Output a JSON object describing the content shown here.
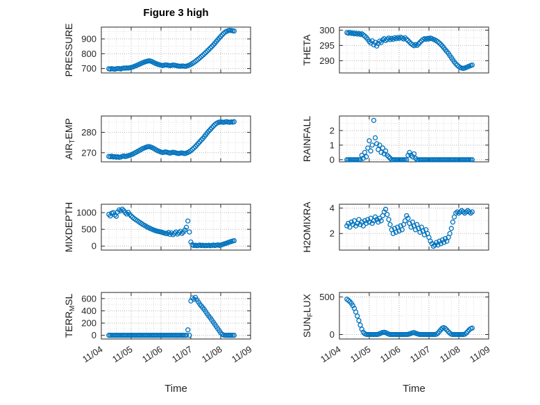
{
  "title": "Figure 3 high",
  "chart_data": {
    "type": "scatter",
    "title": "Figure 3 high",
    "xlabel": "Time",
    "xlim": [
      4,
      9
    ],
    "xticks": [
      4,
      5,
      6,
      7,
      8,
      9
    ],
    "xtick_labels": [
      "11/04",
      "11/05",
      "11/06",
      "11/07",
      "11/08",
      "11/09"
    ],
    "marker_color": "#0072BD",
    "grid": "on",
    "x": [
      4.25,
      4.3,
      4.35,
      4.4,
      4.45,
      4.5,
      4.55,
      4.6,
      4.65,
      4.7,
      4.75,
      4.8,
      4.85,
      4.9,
      4.95,
      5,
      5.05,
      5.1,
      5.15,
      5.2,
      5.25,
      5.3,
      5.35,
      5.4,
      5.45,
      5.5,
      5.55,
      5.6,
      5.65,
      5.7,
      5.75,
      5.8,
      5.85,
      5.9,
      5.95,
      6,
      6.05,
      6.1,
      6.15,
      6.2,
      6.25,
      6.3,
      6.35,
      6.4,
      6.45,
      6.5,
      6.55,
      6.6,
      6.65,
      6.7,
      6.75,
      6.8,
      6.85,
      6.9,
      6.95,
      7,
      7.05,
      7.1,
      7.15,
      7.2,
      7.25,
      7.3,
      7.35,
      7.4,
      7.45,
      7.5,
      7.55,
      7.6,
      7.65,
      7.7,
      7.75,
      7.8,
      7.85,
      7.9,
      7.95,
      8,
      8.05,
      8.1,
      8.15,
      8.2,
      8.25,
      8.3,
      8.35,
      8.4,
      8.45
    ],
    "panels": [
      {
        "name": "PRESSURE",
        "row": 0,
        "col": 0,
        "label_parts": [
          {
            "text": "PRESSURE"
          }
        ],
        "ylim": [
          670,
          980
        ],
        "yticks": [
          700,
          800,
          900
        ],
        "values": [
          698,
          696,
          699,
          697,
          695,
          698,
          700,
          699,
          697,
          701,
          703,
          702,
          704,
          703,
          705,
          707,
          710,
          714,
          718,
          722,
          727,
          731,
          736,
          740,
          744,
          747,
          750,
          752,
          750,
          746,
          741,
          736,
          732,
          728,
          725,
          722,
          720,
          722,
          724,
          723,
          721,
          719,
          721,
          723,
          722,
          720,
          718,
          716,
          715,
          717,
          716,
          714,
          716,
          719,
          723,
          728,
          734,
          741,
          748,
          756,
          764,
          772,
          781,
          790,
          799,
          808,
          818,
          828,
          838,
          848,
          859,
          870,
          882,
          894,
          906,
          917,
          928,
          938,
          946,
          952,
          956,
          958,
          957,
          955,
          953
        ]
      },
      {
        "name": "THETA",
        "row": 0,
        "col": 1,
        "label_parts": [
          {
            "text": "THETA"
          }
        ],
        "ylim": [
          286,
          301
        ],
        "yticks": [
          290,
          295,
          300
        ],
        "values": [
          299.2,
          299,
          299.3,
          298.9,
          299.1,
          298.8,
          299,
          298.7,
          298.9,
          298.6,
          298.8,
          298.4,
          298.1,
          297.6,
          297,
          296.3,
          295.8,
          296.5,
          295.2,
          296,
          294.8,
          295.6,
          296.4,
          296,
          296.8,
          297.2,
          296.6,
          297,
          297.4,
          296.9,
          297.3,
          297,
          297.5,
          297.2,
          297.6,
          297.3,
          297.7,
          297.4,
          297.1,
          297.5,
          297,
          296.6,
          296.1,
          295.6,
          295.2,
          294.9,
          295.3,
          295,
          295.5,
          296,
          296.5,
          296.9,
          297.2,
          297,
          297.3,
          297.1,
          297.4,
          297.2,
          297,
          296.8,
          296.5,
          296.2,
          295.8,
          295.3,
          294.8,
          294.2,
          293.6,
          293,
          292.4,
          291.7,
          291,
          290.3,
          289.6,
          289,
          288.5,
          288.1,
          287.8,
          287.6,
          287.5,
          287.6,
          287.8,
          288,
          288.2,
          288.4,
          288.6
        ]
      },
      {
        "name": "AIRTEMP",
        "row": 1,
        "col": 0,
        "label_parts": [
          {
            "text": "AIR"
          },
          {
            "text": "T",
            "sub": true
          },
          {
            "text": "EMP"
          }
        ],
        "ylim": [
          265.5,
          288
        ],
        "yticks": [
          270,
          280
        ],
        "values": [
          268.2,
          268,
          268.3,
          267.9,
          268.1,
          267.8,
          268,
          267.7,
          267.9,
          268.2,
          268.4,
          268.1,
          268.3,
          268.5,
          268.7,
          269,
          269.3,
          269.7,
          270.1,
          270.5,
          270.9,
          271.3,
          271.7,
          272.1,
          272.4,
          272.7,
          272.9,
          273,
          272.8,
          272.5,
          272.1,
          271.7,
          271.3,
          270.9,
          270.6,
          270.3,
          270.1,
          270.2,
          270.4,
          270.2,
          270,
          269.8,
          270,
          270.2,
          270.1,
          269.9,
          269.7,
          269.6,
          269.8,
          269.9,
          269.7,
          269.6,
          269.8,
          270.1,
          270.5,
          271,
          271.6,
          272.3,
          273,
          273.8,
          274.6,
          275.4,
          276.2,
          277,
          277.9,
          278.8,
          279.7,
          280.6,
          281.4,
          282.2,
          283,
          283.7,
          284.3,
          284.7,
          285,
          285.1,
          285,
          284.9,
          285.1,
          285.2,
          285,
          284.9,
          285.1,
          285,
          285.2
        ]
      },
      {
        "name": "RAINFALL",
        "row": 1,
        "col": 1,
        "label_parts": [
          {
            "text": "RAINFALL"
          }
        ],
        "ylim": [
          -0.15,
          3.0
        ],
        "yticks": [
          0,
          1,
          2
        ],
        "values": [
          0,
          0,
          0,
          0,
          0,
          0,
          0,
          0,
          0,
          0,
          0.3,
          0.1,
          0.5,
          0.2,
          0.8,
          1.3,
          0.6,
          1,
          2.7,
          1.5,
          1.1,
          0.7,
          1,
          0.5,
          0.8,
          0.4,
          0.6,
          0.3,
          0.2,
          0.1,
          0,
          0,
          0,
          0,
          0,
          0,
          0,
          0,
          0,
          0,
          0,
          0.3,
          0.5,
          0.3,
          0.2,
          0.4,
          0.1,
          0,
          0,
          0,
          0,
          0,
          0,
          0,
          0,
          0,
          0,
          0,
          0,
          0,
          0,
          0,
          0,
          0,
          0,
          0,
          0,
          0,
          0,
          0,
          0,
          0,
          0,
          0,
          0,
          0,
          0,
          0,
          0,
          0,
          0,
          0,
          0,
          0,
          0
        ]
      },
      {
        "name": "MIXDEPTH",
        "row": 2,
        "col": 0,
        "label_parts": [
          {
            "text": "MIXDEPTH"
          }
        ],
        "ylim": [
          -120,
          1250
        ],
        "yticks": [
          0,
          500,
          1000
        ],
        "values": [
          950,
          900,
          980,
          1000,
          930,
          890,
          1020,
          1080,
          1050,
          1100,
          1060,
          1000,
          960,
          1010,
          950,
          900,
          860,
          820,
          790,
          760,
          730,
          700,
          670,
          640,
          615,
          590,
          565,
          540,
          520,
          500,
          480,
          465,
          450,
          440,
          430,
          420,
          405,
          390,
          380,
          370,
          405,
          350,
          390,
          340,
          380,
          420,
          360,
          400,
          440,
          380,
          420,
          480,
          560,
          750,
          420,
          120,
          40,
          15,
          25,
          10,
          20,
          30,
          15,
          25,
          10,
          20,
          15,
          25,
          10,
          20,
          30,
          15,
          25,
          35,
          20,
          30,
          45,
          60,
          75,
          90,
          105,
          120,
          135,
          150,
          160
        ]
      },
      {
        "name": "H2OMIXRA",
        "row": 2,
        "col": 1,
        "label_parts": [
          {
            "text": "H2OMIXRA"
          }
        ],
        "ylim": [
          0.7,
          4.3
        ],
        "yticks": [
          2,
          4
        ],
        "values": [
          2.6,
          2.8,
          2.5,
          2.9,
          2.7,
          3,
          2.6,
          2.8,
          3.1,
          2.7,
          2.9,
          2.6,
          3,
          2.8,
          3.1,
          2.9,
          3.2,
          2.8,
          3,
          3.3,
          3.1,
          2.9,
          3.2,
          3,
          3.4,
          3.7,
          3.9,
          3.5,
          3.1,
          2.7,
          2.3,
          2,
          2.4,
          2.1,
          2.5,
          2.2,
          2.6,
          2.3,
          2.7,
          3,
          3.4,
          3.2,
          2.8,
          2.5,
          2.9,
          2.6,
          2.3,
          2.7,
          2.4,
          2.1,
          2.5,
          2.2,
          1.9,
          2.3,
          2,
          1.7,
          1.4,
          1.2,
          1,
          1.1,
          1.3,
          1.1,
          1.4,
          1.2,
          1.5,
          1.3,
          1.6,
          1.4,
          1.7,
          2,
          2.4,
          2.9,
          3.3,
          3.6,
          3.7,
          3.6,
          3.7,
          3.8,
          3.7,
          3.6,
          3.7,
          3.8,
          3.7,
          3.6,
          3.7
        ]
      },
      {
        "name": "TERRMSL",
        "row": 3,
        "col": 0,
        "label_parts": [
          {
            "text": "TERR"
          },
          {
            "text": "M",
            "sub": true
          },
          {
            "text": "SL"
          }
        ],
        "ylim": [
          -60,
          700
        ],
        "yticks": [
          0,
          200,
          400,
          600
        ],
        "values": [
          0,
          0,
          0,
          0,
          0,
          0,
          0,
          0,
          0,
          0,
          0,
          0,
          0,
          0,
          0,
          0,
          0,
          0,
          0,
          0,
          0,
          0,
          0,
          0,
          0,
          0,
          0,
          0,
          0,
          0,
          0,
          0,
          0,
          0,
          0,
          0,
          0,
          0,
          0,
          0,
          0,
          0,
          0,
          0,
          0,
          0,
          0,
          0,
          0,
          0,
          0,
          0,
          0,
          90,
          0,
          560,
          610,
          590,
          620,
          580,
          545,
          510,
          480,
          450,
          420,
          385,
          350,
          315,
          285,
          250,
          215,
          180,
          145,
          110,
          75,
          40,
          15,
          5,
          0,
          0,
          0,
          0,
          0,
          0,
          0
        ]
      },
      {
        "name": "SUNFLUX",
        "row": 3,
        "col": 1,
        "label_parts": [
          {
            "text": "SUN"
          },
          {
            "text": "F",
            "sub": true
          },
          {
            "text": "LUX"
          }
        ],
        "ylim": [
          -60,
          560
        ],
        "yticks": [
          0,
          500
        ],
        "values": [
          470,
          455,
          438,
          415,
          385,
          348,
          300,
          245,
          185,
          125,
          70,
          30,
          10,
          2,
          0,
          0,
          0,
          0,
          0,
          0,
          0,
          3,
          10,
          20,
          28,
          30,
          25,
          15,
          6,
          0,
          0,
          0,
          0,
          0,
          0,
          0,
          0,
          0,
          0,
          0,
          0,
          2,
          8,
          15,
          22,
          25,
          18,
          10,
          4,
          0,
          0,
          0,
          0,
          0,
          0,
          0,
          0,
          0,
          0,
          0,
          5,
          18,
          40,
          65,
          85,
          92,
          80,
          60,
          38,
          18,
          5,
          0,
          0,
          0,
          0,
          0,
          0,
          0,
          0,
          5,
          20,
          40,
          62,
          78,
          85
        ]
      }
    ]
  }
}
